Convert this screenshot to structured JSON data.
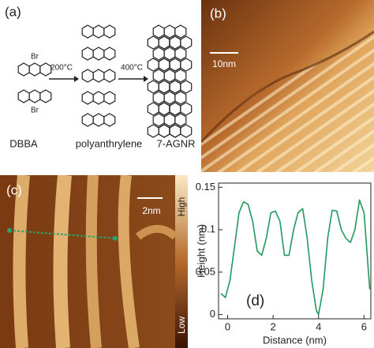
{
  "panels": {
    "a": {
      "label": "(a)",
      "molecules": [
        "DBBA",
        "polyanthrylene",
        "7-AGNR"
      ],
      "substituents": [
        "Br",
        "Br"
      ],
      "steps": [
        "200°C",
        "400°C"
      ]
    },
    "b": {
      "label": "(b)",
      "scale_bar": "10nm"
    },
    "c": {
      "label": "(c)",
      "scale_bar": "2nm",
      "colorbar": [
        "High",
        "Low"
      ]
    }
  },
  "chart_data": {
    "type": "line",
    "annotation": "(d)",
    "x_label": "Distance (nm)",
    "y_label": "Height (nm)",
    "x": [
      -0.3,
      -0.1,
      0.1,
      0.3,
      0.5,
      0.7,
      0.9,
      1.1,
      1.3,
      1.5,
      1.7,
      1.9,
      2.1,
      2.3,
      2.5,
      2.7,
      2.9,
      3.1,
      3.3,
      3.5,
      3.7,
      3.9,
      4.0,
      4.2,
      4.4,
      4.6,
      4.8,
      5.0,
      5.2,
      5.4,
      5.6,
      5.8,
      6.0,
      6.25
    ],
    "series": [
      {
        "color": "#1f9a5c",
        "values": [
          0.025,
          0.02,
          0.04,
          0.08,
          0.12,
          0.133,
          0.13,
          0.11,
          0.075,
          0.07,
          0.09,
          0.12,
          0.122,
          0.11,
          0.07,
          0.07,
          0.1,
          0.12,
          0.125,
          0.09,
          0.04,
          0.005,
          0.0,
          0.03,
          0.09,
          0.123,
          0.122,
          0.1,
          0.09,
          0.085,
          0.1,
          0.135,
          0.12,
          0.03
        ]
      }
    ],
    "xlim": [
      -0.4,
      6.3
    ],
    "ylim": [
      -0.005,
      0.155
    ],
    "xticks": [
      0,
      2,
      4,
      6
    ],
    "yticks": [
      0,
      0.05,
      0.1,
      0.15
    ]
  }
}
